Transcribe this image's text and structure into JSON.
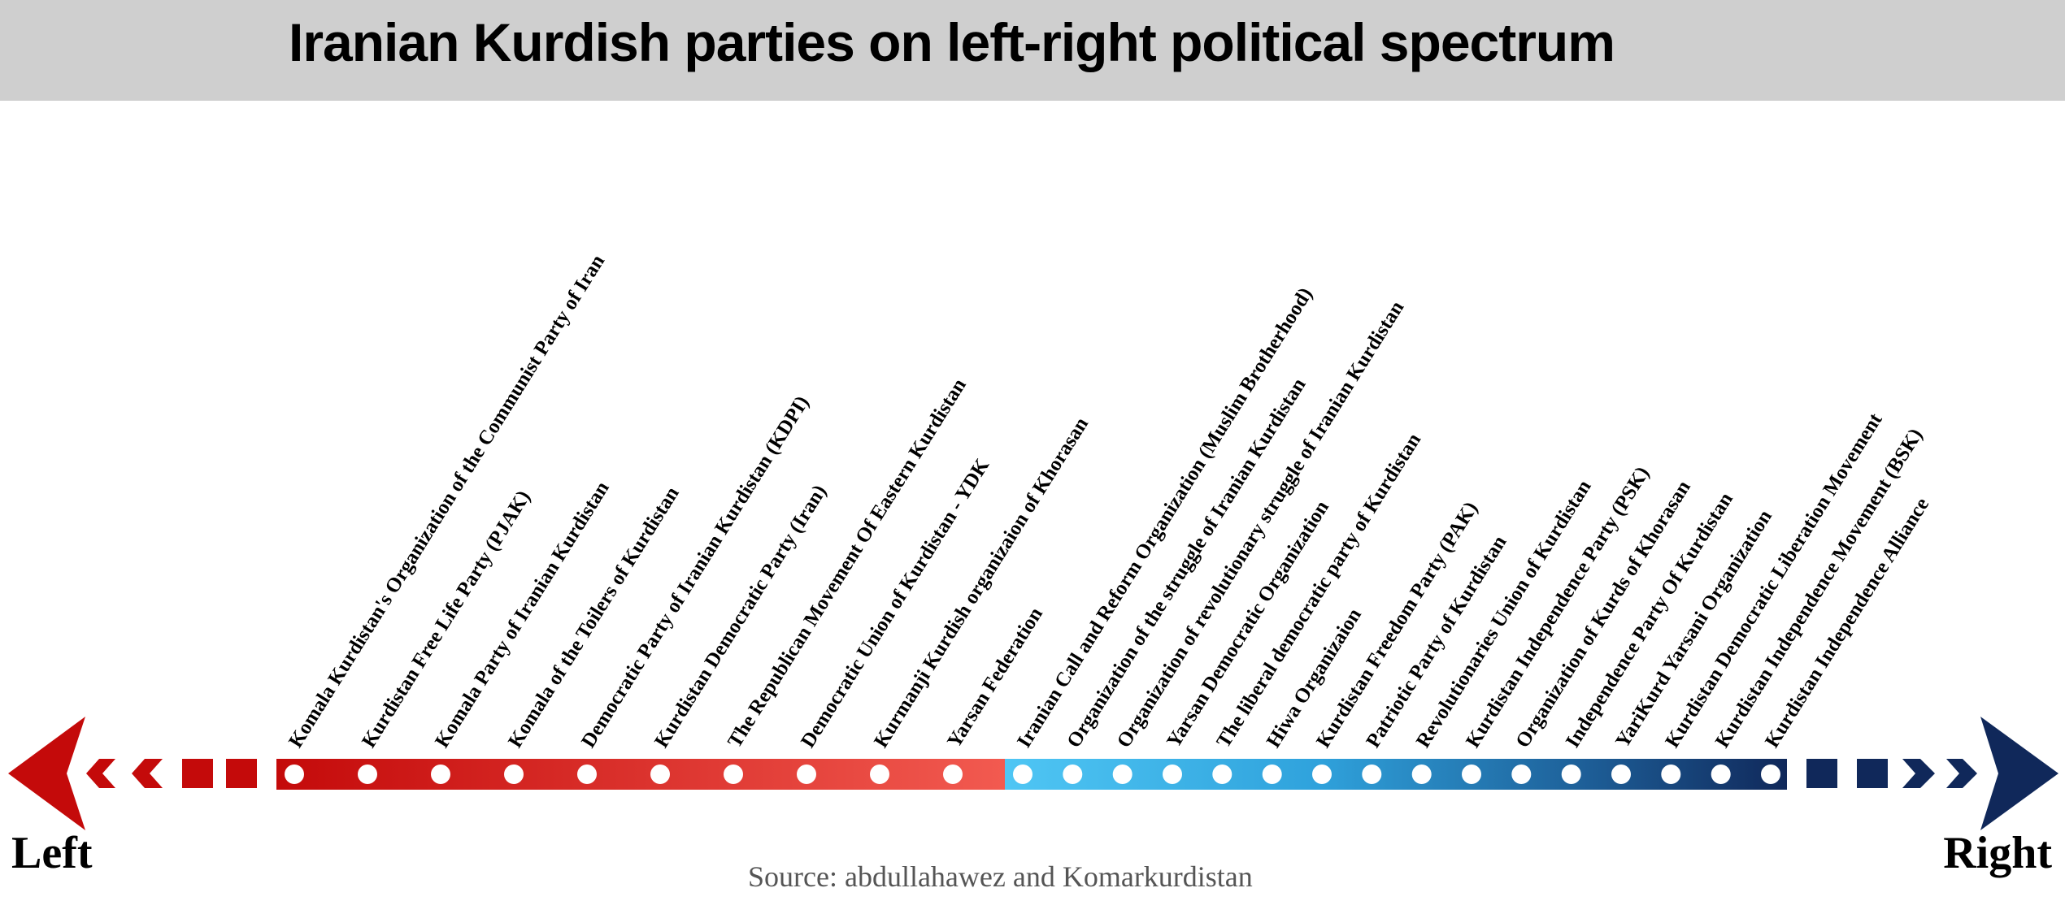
{
  "title": "Iranian Kurdish parties on left-right political spectrum",
  "axis": {
    "left_label": "Left",
    "right_label": "Right",
    "left_color": "#c00000",
    "right_color": "#0d2a5e"
  },
  "source": "Source: abdullahawez and Komarkurdistan",
  "parties": [
    {
      "name": "Komala Kurdistan's Organization of the Communist Party of Iran",
      "side": "left"
    },
    {
      "name": "Kurdistan Free Life Party (PJAK)",
      "side": "left"
    },
    {
      "name": "Komala Party of Iranian Kurdistan",
      "side": "left"
    },
    {
      "name": "Komala of the Toilers of Kurdistan",
      "side": "left"
    },
    {
      "name": "Democratic Party of Iranian Kurdistan (KDPI)",
      "side": "left"
    },
    {
      "name": "Kurdistan Democratic Party (Iran)",
      "side": "left"
    },
    {
      "name": "The Republican Movement Of Eastern Kurdistan",
      "side": "left"
    },
    {
      "name": "Democratic Union of Kurdistan - YDK",
      "side": "left"
    },
    {
      "name": "Kurmanji Kurdish organizaion of Khorasan",
      "side": "left"
    },
    {
      "name": "Yarsan Federation",
      "side": "left"
    },
    {
      "name": "Iranian Call and Reform Organization (Muslim Brotherhood)",
      "side": "right"
    },
    {
      "name": "Organization of the struggle of Iranian Kurdistan",
      "side": "right"
    },
    {
      "name": "Organization of revolutionary struggle of Iranian Kurdistan",
      "side": "right"
    },
    {
      "name": "Yarsan Democratic Organization",
      "side": "right"
    },
    {
      "name": "The liberal democratic party of Kurdistan",
      "side": "right"
    },
    {
      "name": "Hiwa Organizaion",
      "side": "right"
    },
    {
      "name": "Kurdistan Freedom Party (PAK)",
      "side": "right"
    },
    {
      "name": "Patriotic Party of Kurdistan",
      "side": "right"
    },
    {
      "name": "Revolutionaries Union of Kurdistan",
      "side": "right"
    },
    {
      "name": "Kurdistan Independence Party (PSK)",
      "side": "right"
    },
    {
      "name": "Organization of Kurds of Khorasan",
      "side": "right"
    },
    {
      "name": "Independence Party Of Kurdistan",
      "side": "right"
    },
    {
      "name": "YariKurd Yarsani Organization",
      "side": "right"
    },
    {
      "name": "Kurdistan Democratic Liberation Movement",
      "side": "right"
    },
    {
      "name": "Kurdistan Independence  Movement (BSK)",
      "side": "right"
    },
    {
      "name": "Kurdistan Independence Alliance",
      "side": "right"
    }
  ]
}
